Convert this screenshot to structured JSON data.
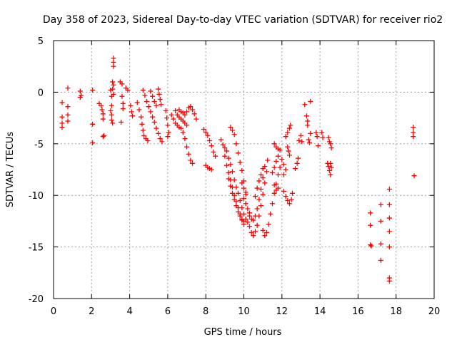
{
  "chart_data": {
    "type": "scatter",
    "title": "Day 358 of 2023, Sidereal Day-to-day VTEC variation (SDTVAR) for receiver rio2",
    "xlabel": "GPS time / hours",
    "ylabel": "SDTVAR / TECUs",
    "xlim": [
      0,
      20
    ],
    "ylim": [
      -20,
      5
    ],
    "xticks": [
      "0",
      "2",
      "4",
      "6",
      "8",
      "10",
      "12",
      "14",
      "16",
      "18",
      "20"
    ],
    "yticks": [
      "5",
      "0",
      "-5",
      "-10",
      "-15",
      "-20"
    ],
    "grid": true,
    "marker": "+",
    "series_color": "#ff0000",
    "points": [
      [
        0.45,
        -1.0
      ],
      [
        0.45,
        -2.4
      ],
      [
        0.45,
        -3.0
      ],
      [
        0.45,
        -3.4
      ],
      [
        0.75,
        0.4
      ],
      [
        0.75,
        -1.4
      ],
      [
        0.75,
        -2.2
      ],
      [
        0.75,
        -2.8
      ],
      [
        1.4,
        0.1
      ],
      [
        1.4,
        -0.5
      ],
      [
        1.45,
        -0.3
      ],
      [
        2.05,
        0.2
      ],
      [
        2.05,
        -3.1
      ],
      [
        2.05,
        -4.9
      ],
      [
        2.4,
        -1.1
      ],
      [
        2.5,
        -1.3
      ],
      [
        2.55,
        -1.7
      ],
      [
        2.6,
        -2.1
      ],
      [
        2.6,
        -2.6
      ],
      [
        2.6,
        -4.3
      ],
      [
        2.65,
        -4.2
      ],
      [
        3.0,
        0.2
      ],
      [
        3.05,
        -0.4
      ],
      [
        3.05,
        -1.3
      ],
      [
        3.0,
        -1.8
      ],
      [
        3.05,
        -2.2
      ],
      [
        3.05,
        -2.7
      ],
      [
        3.1,
        -3.0
      ],
      [
        3.15,
        3.3
      ],
      [
        3.15,
        2.9
      ],
      [
        3.15,
        2.5
      ],
      [
        3.1,
        1.0
      ],
      [
        3.15,
        0.7
      ],
      [
        3.1,
        0.3
      ],
      [
        3.15,
        -0.2
      ],
      [
        3.5,
        1.0
      ],
      [
        3.6,
        0.8
      ],
      [
        3.6,
        -0.4
      ],
      [
        3.65,
        -1.1
      ],
      [
        3.65,
        -1.6
      ],
      [
        3.55,
        -2.9
      ],
      [
        3.8,
        0.4
      ],
      [
        3.9,
        0.2
      ],
      [
        4.05,
        -1.3
      ],
      [
        4.1,
        -1.9
      ],
      [
        4.15,
        -2.3
      ],
      [
        4.4,
        -1.0
      ],
      [
        4.5,
        -1.7
      ],
      [
        4.6,
        -2.4
      ],
      [
        4.65,
        -3.1
      ],
      [
        4.7,
        -3.7
      ],
      [
        4.75,
        -4.2
      ],
      [
        4.85,
        -4.5
      ],
      [
        4.95,
        -4.7
      ],
      [
        4.7,
        0.2
      ],
      [
        4.8,
        -0.3
      ],
      [
        4.9,
        -0.9
      ],
      [
        5.0,
        -1.4
      ],
      [
        5.1,
        -1.9
      ],
      [
        5.2,
        -2.4
      ],
      [
        5.3,
        -2.9
      ],
      [
        5.4,
        -3.5
      ],
      [
        5.5,
        -4.0
      ],
      [
        5.6,
        -4.5
      ],
      [
        5.7,
        -4.8
      ],
      [
        5.1,
        0.1
      ],
      [
        5.2,
        -0.4
      ],
      [
        5.3,
        -0.9
      ],
      [
        5.4,
        -1.3
      ],
      [
        5.5,
        0.3
      ],
      [
        5.55,
        -0.2
      ],
      [
        5.6,
        -0.7
      ],
      [
        5.65,
        -1.2
      ],
      [
        5.9,
        -1.8
      ],
      [
        5.95,
        -2.5
      ],
      [
        6.0,
        -3.2
      ],
      [
        6.05,
        -3.9
      ],
      [
        6.0,
        -4.3
      ],
      [
        6.2,
        -2.2
      ],
      [
        6.3,
        -2.6
      ],
      [
        6.4,
        -3.0
      ],
      [
        6.5,
        -3.2
      ],
      [
        6.6,
        -3.4
      ],
      [
        6.7,
        -3.5
      ],
      [
        6.4,
        -1.8
      ],
      [
        6.5,
        -2.2
      ],
      [
        6.6,
        -2.4
      ],
      [
        6.7,
        -2.6
      ],
      [
        6.8,
        -2.8
      ],
      [
        6.9,
        -3.0
      ],
      [
        7.0,
        -3.2
      ],
      [
        6.6,
        -1.7
      ],
      [
        6.7,
        -1.9
      ],
      [
        6.8,
        -2.0
      ],
      [
        6.9,
        -2.2
      ],
      [
        7.0,
        -1.9
      ],
      [
        7.1,
        -1.5
      ],
      [
        7.2,
        -1.4
      ],
      [
        7.3,
        -1.7
      ],
      [
        7.4,
        -2.1
      ],
      [
        7.5,
        -2.6
      ],
      [
        6.8,
        -3.9
      ],
      [
        6.9,
        -4.5
      ],
      [
        7.0,
        -5.3
      ],
      [
        7.1,
        -6.0
      ],
      [
        7.2,
        -6.6
      ],
      [
        7.3,
        -6.9
      ],
      [
        7.9,
        -3.6
      ],
      [
        8.0,
        -3.9
      ],
      [
        8.1,
        -4.2
      ],
      [
        8.2,
        -4.7
      ],
      [
        8.3,
        -5.2
      ],
      [
        8.4,
        -5.8
      ],
      [
        8.5,
        -6.2
      ],
      [
        8.0,
        -7.1
      ],
      [
        8.1,
        -7.3
      ],
      [
        8.2,
        -7.4
      ],
      [
        8.3,
        -7.5
      ],
      [
        8.8,
        -4.6
      ],
      [
        8.9,
        -5.1
      ],
      [
        9.0,
        -5.4
      ],
      [
        9.1,
        -5.7
      ],
      [
        9.2,
        -6.4
      ],
      [
        9.3,
        -7.0
      ],
      [
        9.4,
        -7.7
      ],
      [
        9.5,
        -8.5
      ],
      [
        9.6,
        -9.2
      ],
      [
        9.7,
        -9.8
      ],
      [
        9.8,
        -10.5
      ],
      [
        9.9,
        -11.2
      ],
      [
        10.0,
        -11.8
      ],
      [
        10.1,
        -12.3
      ],
      [
        10.2,
        -12.6
      ],
      [
        9.3,
        -3.4
      ],
      [
        9.4,
        -3.7
      ],
      [
        9.5,
        -4.1
      ],
      [
        9.6,
        -5.0
      ],
      [
        9.7,
        -5.9
      ],
      [
        9.8,
        -6.8
      ],
      [
        9.9,
        -7.6
      ],
      [
        10.0,
        -8.6
      ],
      [
        9.0,
        -6.2
      ],
      [
        9.1,
        -7.1
      ],
      [
        9.2,
        -7.8
      ],
      [
        9.3,
        -8.5
      ],
      [
        9.4,
        -9.2
      ],
      [
        9.5,
        -10.0
      ],
      [
        9.6,
        -10.6
      ],
      [
        9.7,
        -11.2
      ],
      [
        9.8,
        -11.8
      ],
      [
        9.9,
        -12.3
      ],
      [
        10.0,
        -12.5
      ],
      [
        9.2,
        -8.4
      ],
      [
        9.3,
        -9.1
      ],
      [
        9.4,
        -9.8
      ],
      [
        9.5,
        -10.4
      ],
      [
        9.6,
        -11.0
      ],
      [
        9.7,
        -11.6
      ],
      [
        9.8,
        -12.0
      ],
      [
        9.9,
        -12.4
      ],
      [
        10.0,
        -12.8
      ],
      [
        9.9,
        -8.8
      ],
      [
        10.0,
        -9.3
      ],
      [
        10.1,
        -9.7
      ],
      [
        10.1,
        -9.9
      ],
      [
        10.3,
        -13.0
      ],
      [
        10.4,
        -13.6
      ],
      [
        10.5,
        -13.9
      ],
      [
        10.6,
        -13.5
      ],
      [
        10.7,
        -12.9
      ],
      [
        10.8,
        -12.0
      ],
      [
        10.9,
        -11.0
      ],
      [
        11.0,
        -9.9
      ],
      [
        11.1,
        -8.8
      ],
      [
        11.2,
        -7.7
      ],
      [
        11.25,
        -6.6
      ],
      [
        10.3,
        -12.0
      ],
      [
        10.4,
        -12.3
      ],
      [
        10.5,
        -12.4
      ],
      [
        10.6,
        -12.0
      ],
      [
        10.7,
        -11.3
      ],
      [
        10.8,
        -10.4
      ],
      [
        10.9,
        -9.4
      ],
      [
        11.0,
        -8.3
      ],
      [
        11.1,
        -7.2
      ],
      [
        10.6,
        -10.1
      ],
      [
        10.7,
        -9.3
      ],
      [
        10.8,
        -8.6
      ],
      [
        10.9,
        -8.0
      ],
      [
        11.0,
        -7.4
      ],
      [
        10.0,
        -10.3
      ],
      [
        10.1,
        -10.8
      ],
      [
        10.2,
        -11.3
      ],
      [
        10.3,
        -11.7
      ],
      [
        11.0,
        -13.4
      ],
      [
        11.1,
        -13.9
      ],
      [
        11.2,
        -13.6
      ],
      [
        11.3,
        -12.8
      ],
      [
        11.4,
        -11.8
      ],
      [
        11.5,
        -10.8
      ],
      [
        11.6,
        -9.8
      ],
      [
        11.7,
        -8.9
      ],
      [
        11.8,
        -8.0
      ],
      [
        11.9,
        -7.3
      ],
      [
        11.5,
        -7.8
      ],
      [
        11.6,
        -7.3
      ],
      [
        11.7,
        -6.7
      ],
      [
        11.8,
        -6.2
      ],
      [
        11.6,
        -5.0
      ],
      [
        11.7,
        -5.3
      ],
      [
        11.8,
        -5.5
      ],
      [
        11.9,
        -5.6
      ],
      [
        11.6,
        -9.0
      ],
      [
        11.7,
        -9.5
      ],
      [
        11.8,
        -9.3
      ],
      [
        12.0,
        -6.5
      ],
      [
        12.1,
        -7.0
      ],
      [
        12.2,
        -7.5
      ],
      [
        12.1,
        -8.0
      ],
      [
        12.1,
        -9.6
      ],
      [
        12.2,
        -10.1
      ],
      [
        12.3,
        -10.5
      ],
      [
        12.4,
        -10.8
      ],
      [
        12.5,
        -10.4
      ],
      [
        12.55,
        -9.8
      ],
      [
        12.2,
        -4.3
      ],
      [
        12.3,
        -3.9
      ],
      [
        12.4,
        -3.5
      ],
      [
        12.45,
        -3.2
      ],
      [
        12.3,
        -5.3
      ],
      [
        12.35,
        -5.7
      ],
      [
        12.4,
        -6.1
      ],
      [
        12.7,
        -7.4
      ],
      [
        12.8,
        -6.9
      ],
      [
        12.85,
        -6.4
      ],
      [
        12.9,
        -4.7
      ],
      [
        13.0,
        -4.2
      ],
      [
        13.05,
        -4.8
      ],
      [
        13.2,
        -1.2
      ],
      [
        13.3,
        -2.3
      ],
      [
        13.35,
        -3.2
      ],
      [
        13.4,
        -4.6
      ],
      [
        13.45,
        -4.9
      ],
      [
        13.5,
        -4.0
      ],
      [
        13.5,
        -0.9
      ],
      [
        13.35,
        -2.8
      ],
      [
        13.8,
        -3.9
      ],
      [
        13.85,
        -4.3
      ],
      [
        13.9,
        -5.2
      ],
      [
        14.1,
        -3.9
      ],
      [
        14.15,
        -4.4
      ],
      [
        14.45,
        -4.4
      ],
      [
        14.5,
        -4.8
      ],
      [
        14.55,
        -5.0
      ],
      [
        14.6,
        -5.4
      ],
      [
        14.4,
        -6.9
      ],
      [
        14.45,
        -7.2
      ],
      [
        14.5,
        -7.6
      ],
      [
        14.55,
        -8.0
      ],
      [
        14.6,
        -7.3
      ],
      [
        14.55,
        -6.9
      ],
      [
        16.65,
        -11.7
      ],
      [
        16.65,
        -12.9
      ],
      [
        16.65,
        -14.8
      ],
      [
        16.7,
        -14.9
      ],
      [
        17.2,
        -10.9
      ],
      [
        17.2,
        -12.5
      ],
      [
        17.2,
        -14.7
      ],
      [
        17.2,
        -16.3
      ],
      [
        17.65,
        -9.4
      ],
      [
        17.65,
        -10.9
      ],
      [
        17.65,
        -12.2
      ],
      [
        17.65,
        -13.5
      ],
      [
        17.65,
        -15.0
      ],
      [
        17.65,
        -18.0
      ],
      [
        17.65,
        -18.3
      ],
      [
        18.9,
        -3.4
      ],
      [
        18.9,
        -3.9
      ],
      [
        18.9,
        -4.3
      ],
      [
        18.95,
        -8.1
      ]
    ]
  }
}
